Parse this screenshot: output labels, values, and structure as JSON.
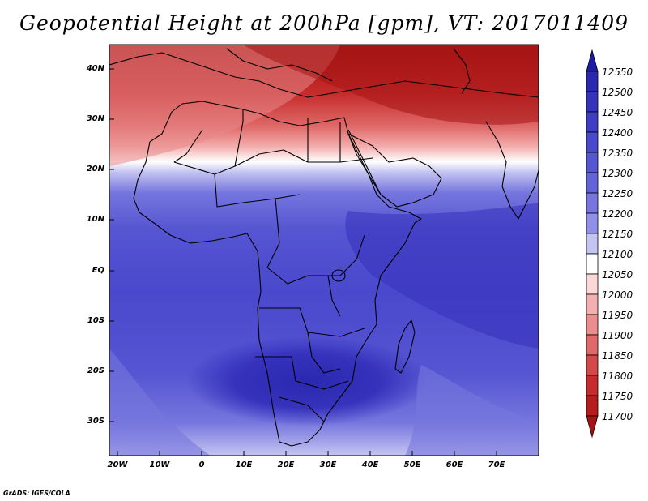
{
  "title": "Geopotential Height at 200hPa [gpm], VT: 2017011409",
  "credit": "GrADS: IGES/COLA",
  "lat_labels": [
    "40N",
    "30N",
    "20N",
    "10N",
    "EQ",
    "10S",
    "20S",
    "30S"
  ],
  "lon_labels": [
    "20W",
    "10W",
    "0",
    "10E",
    "20E",
    "30E",
    "40E",
    "50E",
    "60E",
    "70E"
  ],
  "colorbar": {
    "labels": [
      "12550",
      "12500",
      "12450",
      "12400",
      "12350",
      "12300",
      "12250",
      "12200",
      "12150",
      "12100",
      "12050",
      "12000",
      "11950",
      "11900",
      "11850",
      "11800",
      "11750",
      "11700"
    ],
    "colors_top_to_bottom": [
      "#1e1ca0",
      "#2a27b0",
      "#3632bc",
      "#403dc4",
      "#4a48cc",
      "#5655d2",
      "#6464d8",
      "#7676de",
      "#9090e6",
      "#c4c4f2",
      "#ffffff",
      "#fbd7d7",
      "#f4b0b0",
      "#ec8d8d",
      "#e06a6a",
      "#d44848",
      "#c62c2c",
      "#b51c1c",
      "#a51414"
    ]
  }
}
